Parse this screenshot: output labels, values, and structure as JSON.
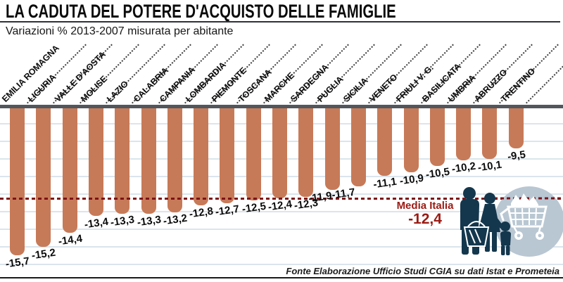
{
  "header": {
    "title": "LA CADUTA DEL POTERE D'ACQUISTO DELLE FAMIGLIE",
    "subtitle": "Variazioni % 2013-2007 misurata per abitante"
  },
  "footer": {
    "source": "Fonte Elaborazione Ufficio Studi CGIA su dati Istat e Prometeia"
  },
  "average": {
    "label": "Media Italia",
    "value_label": "-12,4",
    "value": -12.4
  },
  "icons": {
    "illustration": "family-with-shopping-cart-icon"
  },
  "colors": {
    "bar": "#c77a58",
    "axis_strip": "#51575c",
    "gridline": "#dbe5ec",
    "average_line": "#7c1316",
    "average_text": "#9c1a13",
    "silhouette": "#14374d",
    "icon_circle": "#b9c7d3"
  },
  "chart_data": {
    "type": "bar",
    "title": "LA CADUTA DEL POTERE D'ACQUISTO DELLE FAMIGLIE",
    "subtitle": "Variazioni % 2013-2007 misurata per abitante",
    "unit": "%",
    "orientation": "vertical-negative",
    "grid": "horizontal",
    "legend": "none",
    "categories": [
      "EMILIA ROMAGNA",
      "LIGURIA",
      "VALLE D'AOSTA",
      "MOLISE",
      "LAZIO",
      "CALABRIA",
      "CAMPANIA",
      "LOMBARDIA",
      "PIEMONTE",
      "TOSCANA",
      "MARCHE",
      "SARDEGNA",
      "PUGLIA",
      "SICILIA",
      "VENETO",
      "FRIULI V. G.",
      "BASILICATA",
      "UMBRIA",
      "ABRUZZO",
      "TRENTINO"
    ],
    "values": [
      -15.7,
      -15.2,
      -14.4,
      -13.4,
      -13.3,
      -13.3,
      -13.2,
      -12.8,
      -12.7,
      -12.5,
      -12.4,
      -12.3,
      -11.9,
      -11.7,
      -11.1,
      -10.9,
      -10.5,
      -10.2,
      -10.1,
      -9.5
    ],
    "value_labels": [
      "-15,7",
      "-15,2",
      "-14,4",
      "-13,4",
      "-13,3",
      "-13,3",
      "-13,2",
      "-12,8",
      "-12,7",
      "-12,5",
      "-12,4",
      "-12,3",
      "-11,9",
      "-11,7",
      "-11,1",
      "-10,9",
      "-10,5",
      "-10,2",
      "-10,1",
      "-9,5"
    ],
    "average": -12.4,
    "average_label": "Media Italia",
    "source": "Fonte Elaborazione Ufficio Studi CGIA su dati Istat e Prometeia"
  }
}
